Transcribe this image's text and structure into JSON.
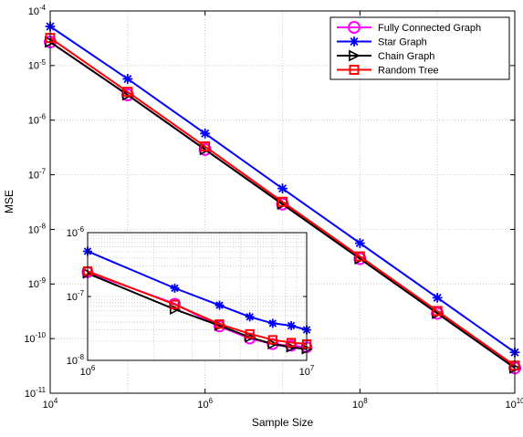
{
  "chart_data": [
    {
      "type": "line",
      "xlabel": "Sample Size",
      "ylabel": "MSE",
      "xscale": "log",
      "yscale": "log",
      "xlim": [
        10000,
        10000000000
      ],
      "ylim": [
        1e-11,
        0.0001
      ],
      "grid": true,
      "legend_position": "top-right",
      "x_ticks": [
        {
          "value": 10000,
          "base": "10",
          "exp": "4"
        },
        {
          "value": 1000000,
          "base": "10",
          "exp": "6"
        },
        {
          "value": 100000000,
          "base": "10",
          "exp": "8"
        },
        {
          "value": 10000000000,
          "base": "10",
          "exp": "10"
        }
      ],
      "y_ticks": [
        {
          "value": 1e-11,
          "base": "10",
          "exp": "-11"
        },
        {
          "value": 1e-10,
          "base": "10",
          "exp": "-10"
        },
        {
          "value": 1e-09,
          "base": "10",
          "exp": "-9"
        },
        {
          "value": 1e-08,
          "base": "10",
          "exp": "-8"
        },
        {
          "value": 1e-07,
          "base": "10",
          "exp": "-7"
        },
        {
          "value": 1e-06,
          "base": "10",
          "exp": "-6"
        },
        {
          "value": 1e-05,
          "base": "10",
          "exp": "-5"
        },
        {
          "value": 0.0001,
          "base": "10",
          "exp": "-4"
        }
      ],
      "x": [
        10000,
        100000,
        1000000,
        10000000,
        100000000,
        1000000000,
        10000000000
      ],
      "series": [
        {
          "name": "Fully Connected Graph",
          "color": "#ff00ff",
          "marker": "circle",
          "values": [
            2.7e-05,
            2.9e-06,
            2.9e-07,
            2.9e-08,
            2.9e-09,
            2.9e-10,
            2.9e-11
          ]
        },
        {
          "name": "Star Graph",
          "color": "#0000ff",
          "marker": "asterisk",
          "values": [
            5.2e-05,
            5.7e-06,
            5.7e-07,
            5.6e-08,
            5.6e-09,
            5.6e-10,
            5.6e-11
          ]
        },
        {
          "name": "Chain Graph",
          "color": "#000000",
          "marker": "triangle-right",
          "values": [
            2.7e-05,
            2.9e-06,
            2.9e-07,
            2.9e-08,
            2.9e-09,
            2.9e-10,
            2.9e-11
          ]
        },
        {
          "name": "Random Tree",
          "color": "#ff0000",
          "marker": "square",
          "values": [
            3.2e-05,
            3.3e-06,
            3.3e-07,
            3.2e-08,
            3.2e-09,
            3.2e-10,
            3.2e-11
          ]
        }
      ]
    },
    {
      "type": "line",
      "role": "inset",
      "xscale": "log",
      "yscale": "log",
      "xlim": [
        1000000,
        10000000
      ],
      "ylim": [
        1e-08,
        1e-06
      ],
      "grid": true,
      "x_ticks": [
        {
          "value": 1000000,
          "base": "10",
          "exp": "6"
        },
        {
          "value": 10000000,
          "base": "10",
          "exp": "7"
        }
      ],
      "y_ticks": [
        {
          "value": 1e-08,
          "base": "10",
          "exp": "-8"
        },
        {
          "value": 1e-07,
          "base": "10",
          "exp": "-7"
        },
        {
          "value": 1e-06,
          "base": "10",
          "exp": "-6"
        }
      ],
      "x": [
        1000000,
        2500000,
        4000000,
        5500000,
        7000000,
        8500000,
        10000000
      ],
      "series": [
        {
          "color": "#ff00ff",
          "marker": "circle",
          "values": [
            2.4e-07,
            7.7e-08,
            3.4e-08,
            2.2e-08,
            1.8e-08,
            1.7e-08,
            1.6e-08
          ]
        },
        {
          "color": "#0000ff",
          "marker": "asterisk",
          "values": [
            5.1e-07,
            1.35e-07,
            7.3e-08,
            4.8e-08,
            3.8e-08,
            3.5e-08,
            3e-08
          ]
        },
        {
          "color": "#000000",
          "marker": "triangle-right",
          "values": [
            2.3e-07,
            6.3e-08,
            3.5e-08,
            2.3e-08,
            1.8e-08,
            1.6e-08,
            1.5e-08
          ]
        },
        {
          "color": "#ff0000",
          "marker": "square",
          "values": [
            2.5e-07,
            7.5e-08,
            3.7e-08,
            2.6e-08,
            2.1e-08,
            1.9e-08,
            1.8e-08
          ]
        }
      ]
    }
  ]
}
